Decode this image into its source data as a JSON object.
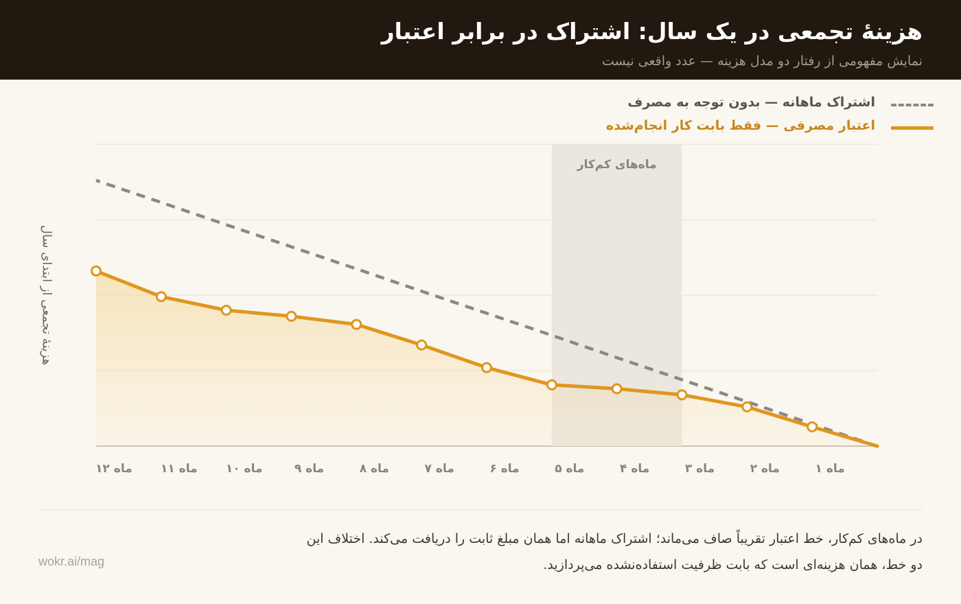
{
  "header": {
    "title": "هزینهٔ تجمعی در یک سال: اشتراک در برابر اعتبار",
    "subtitle": "نمایش مفهومی از رفتار دو مدل هزینه — عدد واقعی نیست"
  },
  "legend": {
    "subscription": "اشتراک ماهانه — بدون توجه به مصرف",
    "credit": "اعتبار مصرفی — فقط بابت کار انجام‌شده"
  },
  "footer": {
    "note": "در ماه‌های کم‌کار، خط اعتبار تقریباً صاف می‌ماند؛ اشتراک ماهانه اما همان مبلغ ثابت را دریافت می‌کند. اختلاف این دو خط، همان هزینه‌ای است که بابت ظرفیت استفاده‌نشده می‌پردازید.",
    "brand": "wokr.ai/mag"
  },
  "chart_data": {
    "type": "line",
    "title": "هزینهٔ تجمعی در یک سال: اشتراک در برابر اعتبار",
    "subtitle": "نمایش مفهومی از رفتار دو مدل هزینه — عدد واقعی نیست",
    "ylabel": "هزینهٔ تجمعی از ابتدای سال",
    "xlabel": "",
    "x": [
      0,
      1,
      2,
      3,
      4,
      5,
      6,
      7,
      8,
      9,
      10,
      11,
      12
    ],
    "categories": [
      "ماه ۱",
      "ماه ۲",
      "ماه ۳",
      "ماه ۴",
      "ماه ۵",
      "ماه ۶",
      "ماه ۷",
      "ماه ۸",
      "ماه ۹",
      "ماه ۱۰",
      "ماه ۱۱",
      "ماه ۱۲"
    ],
    "xlim": [
      0,
      12
    ],
    "ylim": [
      0,
      100
    ],
    "x_direction": "right-to-left",
    "series": [
      {
        "name": "اشتراک ماهانه — بدون توجه به مصرف",
        "style": "dashed",
        "color": "#8f8782",
        "values": [
          0,
          7.3,
          14.7,
          22,
          29.3,
          36.7,
          44,
          51.3,
          58.7,
          66,
          73.3,
          80.7,
          88
        ]
      },
      {
        "name": "اعتبار مصرفی — فقط بابت کار انجام‌شده",
        "style": "solid",
        "color": "#e0961f",
        "values": [
          0,
          6.4,
          13,
          17,
          19,
          20.3,
          26,
          33.5,
          40.3,
          43,
          45,
          49.5,
          58
        ]
      }
    ],
    "highlight_band": {
      "from": 3,
      "to": 5,
      "label": "ماه‌های کم‌کار"
    },
    "grid": true,
    "legend_position": "top-right"
  }
}
